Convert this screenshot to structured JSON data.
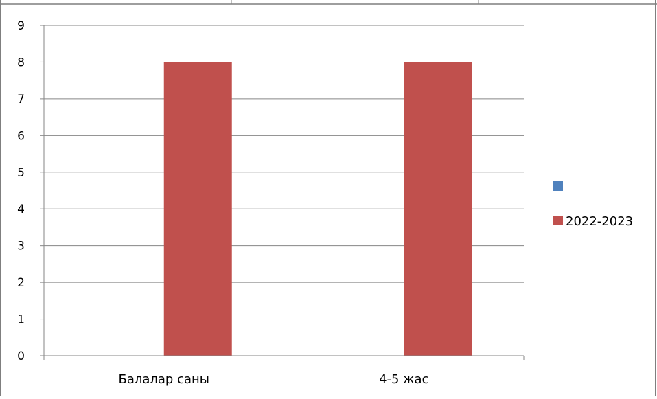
{
  "chart_data": {
    "type": "bar",
    "categories": [
      "Балалар саны",
      "4-5 жас"
    ],
    "series": [
      {
        "name": "",
        "color": "#4F81BD",
        "values": [
          0,
          0
        ]
      },
      {
        "name": "2022-2023",
        "color": "#C0504D",
        "values": [
          8,
          8
        ]
      }
    ],
    "ylim": [
      0,
      9
    ],
    "yticks": [
      "0",
      "1",
      "2",
      "3",
      "4",
      "5",
      "6",
      "7",
      "8",
      "9"
    ],
    "grid": true,
    "legend_position": "right",
    "xlabel": "",
    "ylabel": "",
    "title": ""
  }
}
